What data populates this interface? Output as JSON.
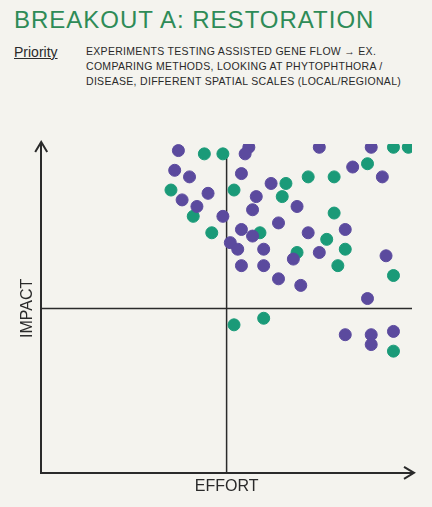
{
  "chart_data": {
    "type": "scatter",
    "title": "BREAKOUT A: RESTORATION",
    "subtitle": "Priority",
    "annotations": [
      "EXPERIMENTS TESTING ASSISTED GENE FLOW → EX. COMPARING METHODS, LOOKING AT PHYTOPHTHORA / DISEASE, DIFFERENT SPATIAL SCALES (LOCAL/REGIONAL)"
    ],
    "x_label": "EFFORT",
    "y_label": "IMPACT",
    "xlim": [
      0,
      10
    ],
    "ylim": [
      0,
      10
    ],
    "tick_labels": false,
    "grid": false,
    "series": [
      {
        "color": "#5b4a9e",
        "marker": "circle",
        "x": [
          3.7,
          5.6,
          5.5,
          7.5,
          8.9,
          3.6,
          4.0,
          5.4,
          8.4,
          9.2,
          3.8,
          4.5,
          5.8,
          6.2,
          4.2,
          4.9,
          5.7,
          6.4,
          6.9,
          5.1,
          5.4,
          5.7,
          6.0,
          7.2,
          8.2,
          5.3,
          7.5,
          5.4,
          6.0,
          6.8,
          6.4,
          7.0,
          9.3,
          8.8,
          8.2,
          8.9,
          9.5,
          8.9
        ],
        "values": [
          9.8,
          9.9,
          9.7,
          9.9,
          9.9,
          9.2,
          9.0,
          9.1,
          9.3,
          9.0,
          8.3,
          8.5,
          8.4,
          8.8,
          8.1,
          7.8,
          8.0,
          7.6,
          8.1,
          7.0,
          7.4,
          7.2,
          6.8,
          7.3,
          7.4,
          6.8,
          6.7,
          6.3,
          6.3,
          6.5,
          5.9,
          5.7,
          6.6,
          5.3,
          4.2,
          4.2,
          4.3,
          3.9
        ]
      },
      {
        "color": "#1a9a78",
        "marker": "circle",
        "x": [
          4.4,
          4.9,
          9.5,
          9.9,
          6.6,
          7.2,
          7.9,
          8.8,
          3.5,
          5.2,
          6.5,
          4.1,
          7.9,
          4.6,
          5.9,
          7.7,
          6.9,
          8.2,
          8.0,
          9.5,
          5.2,
          6.0,
          9.5
        ],
        "values": [
          9.7,
          9.7,
          9.9,
          9.9,
          8.8,
          9.0,
          9.0,
          9.4,
          8.6,
          8.6,
          8.4,
          7.8,
          7.9,
          7.3,
          7.3,
          7.1,
          6.7,
          6.8,
          6.3,
          6.0,
          4.5,
          4.7,
          3.7
        ]
      }
    ]
  }
}
